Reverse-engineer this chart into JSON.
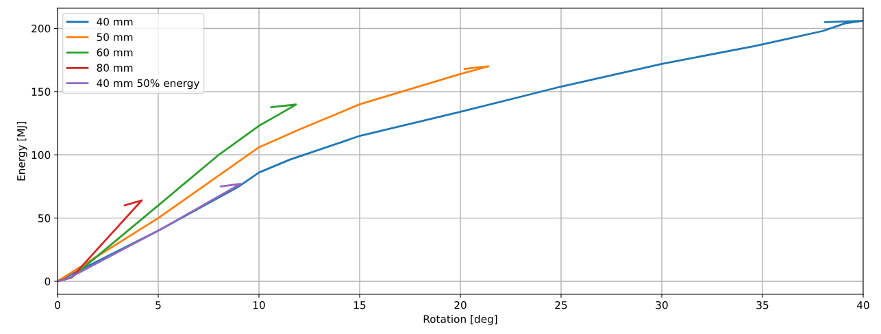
{
  "chart_data": {
    "type": "line",
    "xlabel": "Rotation [deg]",
    "ylabel": "Energy [MJ]",
    "xlim": [
      0,
      40
    ],
    "ylim": [
      -10.3,
      216
    ],
    "xticks": [
      0,
      5,
      10,
      15,
      20,
      25,
      30,
      35,
      40
    ],
    "yticks": [
      0,
      50,
      100,
      150,
      200
    ],
    "grid": true,
    "legend": "top left",
    "series": [
      {
        "name": "40 mm",
        "color": "#1f77b4",
        "x": [
          0,
          5,
          9,
          10,
          11.5,
          15,
          20,
          25,
          30,
          34.6,
          36.3,
          38,
          39.1,
          40,
          38.1
        ],
        "values": [
          0,
          40,
          75,
          86,
          96,
          115,
          134,
          154,
          172,
          186,
          192,
          198,
          204,
          206,
          205
        ]
      },
      {
        "name": "50 mm",
        "color": "#ff7f0e",
        "x": [
          0,
          5,
          10,
          12,
          15,
          20,
          21.4,
          20.2
        ],
        "values": [
          0,
          50,
          106,
          120,
          140,
          164,
          170,
          168
        ]
      },
      {
        "name": "60 mm",
        "color": "#2ca02c",
        "x": [
          0,
          0.7,
          5,
          8,
          10,
          11,
          11.84,
          10.6
        ],
        "values": [
          0,
          3,
          60,
          100,
          123,
          132,
          139.8,
          137.7
        ]
      },
      {
        "name": "80 mm",
        "color": "#d62728",
        "x": [
          0,
          0.7,
          4.18,
          3.33
        ],
        "values": [
          0,
          3,
          64,
          60
        ]
      },
      {
        "name": "40 mm 50% energy",
        "color": "#9467bd",
        "x": [
          0,
          0.5,
          5,
          9.08,
          8.1
        ],
        "values": [
          0,
          2,
          40,
          77,
          75
        ]
      }
    ]
  }
}
